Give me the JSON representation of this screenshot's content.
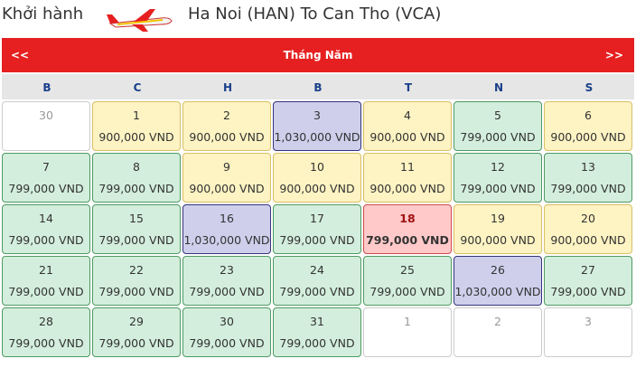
{
  "header": {
    "label": "Khởi hành",
    "route": "Ha Noi (HAN) To Can Tho (VCA)"
  },
  "calendar": {
    "prev": "<<",
    "month": "Tháng Năm",
    "next": ">>",
    "weekdays": [
      "B",
      "C",
      "H",
      "B",
      "T",
      "N",
      "S"
    ],
    "rows": [
      [
        {
          "day": "30",
          "color": "#ffffff",
          "border": "#cccccc"
        },
        {
          "day": "1",
          "price": "900,000 VND",
          "color": "#fdf3c3",
          "border": "#d9bf63"
        },
        {
          "day": "2",
          "price": "900,000 VND",
          "color": "#fdf3c3",
          "border": "#d9bf63"
        },
        {
          "day": "3",
          "price": "1,030,000 VND",
          "color": "#cfcfec",
          "border": "#33337a"
        },
        {
          "day": "4",
          "price": "900,000 VND",
          "color": "#fdf3c3",
          "border": "#d9bf63"
        },
        {
          "day": "5",
          "price": "799,000 VND",
          "color": "#d3eedc",
          "border": "#4e9a63"
        },
        {
          "day": "6",
          "price": "900,000 VND",
          "color": "#fdf3c3",
          "border": "#d9bf63"
        }
      ],
      [
        {
          "day": "7",
          "price": "799,000 VND",
          "color": "#d3eedc",
          "border": "#4e9a63"
        },
        {
          "day": "8",
          "price": "799,000 VND",
          "color": "#d3eedc",
          "border": "#4e9a63"
        },
        {
          "day": "9",
          "price": "900,000 VND",
          "color": "#fdf3c3",
          "border": "#d9bf63"
        },
        {
          "day": "10",
          "price": "900,000 VND",
          "color": "#fdf3c3",
          "border": "#d9bf63"
        },
        {
          "day": "11",
          "price": "900,000 VND",
          "color": "#fdf3c3",
          "border": "#d9bf63"
        },
        {
          "day": "12",
          "price": "799,000 VND",
          "color": "#d3eedc",
          "border": "#4e9a63"
        },
        {
          "day": "13",
          "price": "799,000 VND",
          "color": "#d3eedc",
          "border": "#4e9a63"
        }
      ],
      [
        {
          "day": "14",
          "price": "799,000 VND",
          "color": "#d3eedc",
          "border": "#4e9a63"
        },
        {
          "day": "15",
          "price": "799,000 VND",
          "color": "#d3eedc",
          "border": "#4e9a63"
        },
        {
          "day": "16",
          "price": "1,030,000 VND",
          "color": "#cfcfec",
          "border": "#33337a"
        },
        {
          "day": "17",
          "price": "799,000 VND",
          "color": "#d3eedc",
          "border": "#4e9a63"
        },
        {
          "day": "18",
          "price": "799,000 VND",
          "color": "#ffc9c9",
          "border": "#d04a4a",
          "selected": true
        },
        {
          "day": "19",
          "price": "900,000 VND",
          "color": "#fdf3c3",
          "border": "#d9bf63"
        },
        {
          "day": "20",
          "price": "900,000 VND",
          "color": "#fdf3c3",
          "border": "#d9bf63"
        }
      ],
      [
        {
          "day": "21",
          "price": "799,000 VND",
          "color": "#d3eedc",
          "border": "#4e9a63"
        },
        {
          "day": "22",
          "price": "799,000 VND",
          "color": "#d3eedc",
          "border": "#4e9a63"
        },
        {
          "day": "23",
          "price": "799,000 VND",
          "color": "#d3eedc",
          "border": "#4e9a63"
        },
        {
          "day": "24",
          "price": "799,000 VND",
          "color": "#d3eedc",
          "border": "#4e9a63"
        },
        {
          "day": "25",
          "price": "799,000 VND",
          "color": "#d3eedc",
          "border": "#4e9a63"
        },
        {
          "day": "26",
          "price": "1,030,000 VND",
          "color": "#cfcfec",
          "border": "#33337a"
        },
        {
          "day": "27",
          "price": "799,000 VND",
          "color": "#d3eedc",
          "border": "#4e9a63"
        }
      ],
      [
        {
          "day": "28",
          "price": "799,000 VND",
          "color": "#d3eedc",
          "border": "#4e9a63"
        },
        {
          "day": "29",
          "price": "799,000 VND",
          "color": "#d3eedc",
          "border": "#4e9a63"
        },
        {
          "day": "30",
          "price": "799,000 VND",
          "color": "#d3eedc",
          "border": "#4e9a63"
        },
        {
          "day": "31",
          "price": "799,000 VND",
          "color": "#d3eedc",
          "border": "#4e9a63"
        },
        {
          "day": "1",
          "color": "#ffffff",
          "border": "#cccccc"
        },
        {
          "day": "2",
          "color": "#ffffff",
          "border": "#cccccc"
        },
        {
          "day": "3",
          "color": "#ffffff",
          "border": "#cccccc"
        }
      ]
    ]
  }
}
